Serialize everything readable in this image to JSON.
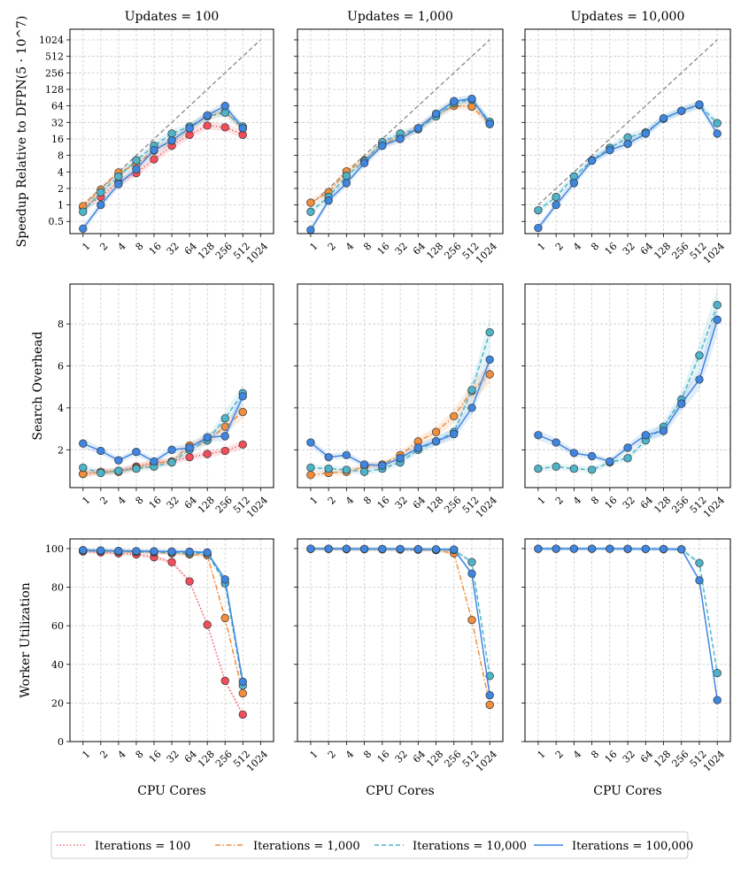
{
  "colors": {
    "it100": "#f24d5a",
    "it1000": "#f28e3c",
    "it10000": "#4fb4c8",
    "it100000": "#3f86e0",
    "ideal": "#888888"
  },
  "chart_data": {
    "type": "line",
    "column_titles": [
      "Updates = 100",
      "Updates = 1,000",
      "Updates = 10,000"
    ],
    "row_ylabels": [
      "Speedup Relative to DFPN(5 · 10^7)",
      "Search Overhead",
      "Worker Utilization"
    ],
    "xlabel": "CPU Cores",
    "x_ticks": [
      "1",
      "2",
      "4",
      "8",
      "16",
      "32",
      "64",
      "128",
      "256",
      "512",
      "1024"
    ],
    "y_ticks": {
      "speedup": [
        "0.5",
        "1",
        "2",
        "4",
        "8",
        "16",
        "32",
        "64",
        "128",
        "256",
        "512",
        "1024"
      ],
      "overhead": [
        "2",
        "4",
        "6",
        "8"
      ],
      "utilization": [
        "0",
        "20",
        "40",
        "60",
        "80",
        "100"
      ]
    },
    "scales": {
      "speedup": {
        "y": "log2",
        "ylim": [
          0.3,
          1600
        ]
      },
      "overhead": {
        "y": "linear",
        "ylim": [
          0.2,
          9.9
        ]
      },
      "utilization": {
        "y": "linear",
        "ylim": [
          0,
          105
        ]
      }
    },
    "x_axis": "log2",
    "legend": {
      "position": "bottom",
      "entries": [
        {
          "key": "it100",
          "label": "Iterations = 100",
          "style": "dotted"
        },
        {
          "key": "it1000",
          "label": "Iterations = 1,000",
          "style": "dashdot"
        },
        {
          "key": "it10000",
          "label": "Iterations = 10,000",
          "style": "dashed"
        },
        {
          "key": "it100000",
          "label": "Iterations = 100,000",
          "style": "solid"
        }
      ]
    },
    "panels": [
      [
        {
          "ideal": true,
          "series": [
            {
              "key": "it100",
              "x": [
                1,
                2,
                4,
                8,
                16,
                32,
                64,
                128,
                256,
                512
              ],
              "y": [
                0.9,
                1.4,
                2.6,
                3.8,
                6.8,
                12,
                19,
                28,
                26,
                19
              ]
            },
            {
              "key": "it1000",
              "x": [
                1,
                2,
                4,
                8,
                16,
                32,
                64,
                128,
                256,
                512
              ],
              "y": [
                0.95,
                1.9,
                3.9,
                5.5,
                9.8,
                15,
                25,
                42,
                50,
                25
              ]
            },
            {
              "key": "it10000",
              "x": [
                1,
                2,
                4,
                8,
                16,
                32,
                64,
                128,
                256,
                512
              ],
              "y": [
                0.75,
                1.7,
                3.3,
                6.5,
                12,
                20,
                27,
                41,
                48,
                27
              ]
            },
            {
              "key": "it100000",
              "x": [
                1,
                2,
                4,
                8,
                16,
                32,
                64,
                128,
                256,
                512
              ],
              "y": [
                0.37,
                1.0,
                2.4,
                4.5,
                10,
                15,
                25,
                43,
                64,
                25
              ]
            }
          ]
        },
        {
          "ideal": true,
          "series": [
            {
              "key": "it1000",
              "x": [
                1,
                2,
                4,
                8,
                16,
                32,
                64,
                128,
                256,
                512,
                1024
              ],
              "y": [
                1.1,
                1.7,
                4.1,
                6.5,
                13,
                17,
                25,
                43,
                64,
                62,
                30
              ]
            },
            {
              "key": "it10000",
              "x": [
                1,
                2,
                4,
                8,
                16,
                32,
                64,
                128,
                256,
                512,
                1024
              ],
              "y": [
                0.75,
                1.4,
                3.4,
                6.3,
                14,
                20,
                24,
                41,
                72,
                83,
                33
              ]
            },
            {
              "key": "it100000",
              "x": [
                1,
                2,
                4,
                8,
                16,
                32,
                64,
                128,
                256,
                512,
                1024
              ],
              "y": [
                0.35,
                1.2,
                2.5,
                5.8,
                12,
                16,
                25,
                46,
                78,
                86,
                30
              ]
            }
          ]
        },
        {
          "ideal": true,
          "series": [
            {
              "key": "it10000",
              "x": [
                1,
                2,
                4,
                8,
                16,
                32,
                64,
                128,
                256,
                512,
                1024
              ],
              "y": [
                0.8,
                1.4,
                3.3,
                6.5,
                11,
                17,
                21,
                37,
                52,
                66,
                31
              ]
            },
            {
              "key": "it100000",
              "x": [
                1,
                2,
                4,
                8,
                16,
                32,
                64,
                128,
                256,
                512,
                1024
              ],
              "y": [
                0.38,
                1.0,
                2.5,
                6.4,
                10,
                13,
                20,
                38,
                52,
                68,
                20
              ]
            }
          ]
        }
      ],
      [
        {
          "series": [
            {
              "key": "it100",
              "x": [
                1,
                2,
                4,
                8,
                16,
                32,
                64,
                128,
                256,
                512
              ],
              "y": [
                0.85,
                0.95,
                1.0,
                1.2,
                1.4,
                1.45,
                1.65,
                1.8,
                1.95,
                2.25
              ]
            },
            {
              "key": "it1000",
              "x": [
                1,
                2,
                4,
                8,
                16,
                32,
                64,
                128,
                256,
                512
              ],
              "y": [
                0.85,
                0.95,
                0.95,
                1.15,
                1.35,
                1.45,
                2.2,
                2.45,
                3.1,
                3.8
              ]
            },
            {
              "key": "it10000",
              "x": [
                1,
                2,
                4,
                8,
                16,
                32,
                64,
                128,
                256,
                512
              ],
              "y": [
                1.15,
                0.9,
                1.0,
                1.1,
                1.2,
                1.4,
                2.0,
                2.45,
                3.5,
                4.7
              ]
            },
            {
              "key": "it100000",
              "x": [
                1,
                2,
                4,
                8,
                16,
                32,
                64,
                128,
                256,
                512
              ],
              "y": [
                2.3,
                1.95,
                1.5,
                1.9,
                1.45,
                2.0,
                2.1,
                2.6,
                2.65,
                4.55
              ]
            }
          ]
        },
        {
          "series": [
            {
              "key": "it1000",
              "x": [
                1,
                2,
                4,
                8,
                16,
                32,
                64,
                128,
                256,
                512,
                1024
              ],
              "y": [
                0.8,
                0.9,
                0.95,
                1.2,
                1.3,
                1.75,
                2.4,
                2.85,
                3.6,
                4.8,
                5.6
              ]
            },
            {
              "key": "it10000",
              "x": [
                1,
                2,
                4,
                8,
                16,
                32,
                64,
                128,
                256,
                512,
                1024
              ],
              "y": [
                1.15,
                1.1,
                1.05,
                0.95,
                1.1,
                1.4,
                2.0,
                2.4,
                2.85,
                4.85,
                7.6
              ]
            },
            {
              "key": "it100000",
              "x": [
                1,
                2,
                4,
                8,
                16,
                32,
                64,
                128,
                256,
                512,
                1024
              ],
              "y": [
                2.35,
                1.65,
                1.75,
                1.3,
                1.25,
                1.6,
                2.1,
                2.4,
                2.75,
                4.0,
                6.3
              ]
            }
          ]
        },
        {
          "series": [
            {
              "key": "it10000",
              "x": [
                1,
                2,
                4,
                8,
                16,
                32,
                64,
                128,
                256,
                512,
                1024
              ],
              "y": [
                1.1,
                1.2,
                1.1,
                1.05,
                1.4,
                1.6,
                2.45,
                3.1,
                4.4,
                6.5,
                8.9
              ]
            },
            {
              "key": "it100000",
              "x": [
                1,
                2,
                4,
                8,
                16,
                32,
                64,
                128,
                256,
                512,
                1024
              ],
              "y": [
                2.7,
                2.35,
                1.85,
                1.7,
                1.45,
                2.1,
                2.7,
                2.9,
                4.2,
                5.35,
                8.2
              ]
            }
          ]
        }
      ],
      [
        {
          "series": [
            {
              "key": "it100",
              "x": [
                1,
                2,
                4,
                8,
                16,
                32,
                64,
                128,
                256,
                512
              ],
              "y": [
                98.5,
                98,
                97.5,
                97,
                95.5,
                93,
                83,
                60.5,
                31.5,
                14
              ]
            },
            {
              "key": "it1000",
              "x": [
                1,
                2,
                4,
                8,
                16,
                32,
                64,
                128,
                256,
                512
              ],
              "y": [
                99,
                98.7,
                98.5,
                98.3,
                98,
                97.5,
                97,
                96.5,
                64,
                25
              ]
            },
            {
              "key": "it10000",
              "x": [
                1,
                2,
                4,
                8,
                16,
                32,
                64,
                128,
                256,
                512
              ],
              "y": [
                99,
                98.8,
                98.6,
                98.5,
                98.3,
                98,
                97.7,
                97.5,
                82,
                29
              ]
            },
            {
              "key": "it100000",
              "x": [
                1,
                2,
                4,
                8,
                16,
                32,
                64,
                128,
                256,
                512
              ],
              "y": [
                99.2,
                99,
                98.8,
                98.7,
                98.6,
                98.5,
                98.4,
                98,
                84,
                31
              ]
            }
          ]
        },
        {
          "series": [
            {
              "key": "it1000",
              "x": [
                1,
                2,
                4,
                8,
                16,
                32,
                64,
                128,
                256,
                512,
                1024
              ],
              "y": [
                99.8,
                99.8,
                99.7,
                99.7,
                99.6,
                99.5,
                99.4,
                99.2,
                97.5,
                63,
                19
              ]
            },
            {
              "key": "it10000",
              "x": [
                1,
                2,
                4,
                8,
                16,
                32,
                64,
                128,
                256,
                512,
                1024
              ],
              "y": [
                99.9,
                99.9,
                99.8,
                99.8,
                99.8,
                99.7,
                99.6,
                99.5,
                99.3,
                93,
                34
              ]
            },
            {
              "key": "it100000",
              "x": [
                1,
                2,
                4,
                8,
                16,
                32,
                64,
                128,
                256,
                512,
                1024
              ],
              "y": [
                99.9,
                99.9,
                99.9,
                99.8,
                99.8,
                99.8,
                99.7,
                99.6,
                99.5,
                87,
                24
              ]
            }
          ]
        },
        {
          "series": [
            {
              "key": "it10000",
              "x": [
                1,
                2,
                4,
                8,
                16,
                32,
                64,
                128,
                256,
                512,
                1024
              ],
              "y": [
                99.9,
                99.9,
                99.9,
                99.9,
                99.9,
                99.8,
                99.8,
                99.7,
                99.6,
                92.5,
                35.5
              ]
            },
            {
              "key": "it100000",
              "x": [
                1,
                2,
                4,
                8,
                16,
                32,
                64,
                128,
                256,
                512,
                1024
              ],
              "y": [
                99.9,
                99.9,
                99.9,
                99.9,
                99.9,
                99.9,
                99.8,
                99.8,
                99.6,
                83.5,
                21.5
              ]
            }
          ]
        }
      ]
    ]
  }
}
